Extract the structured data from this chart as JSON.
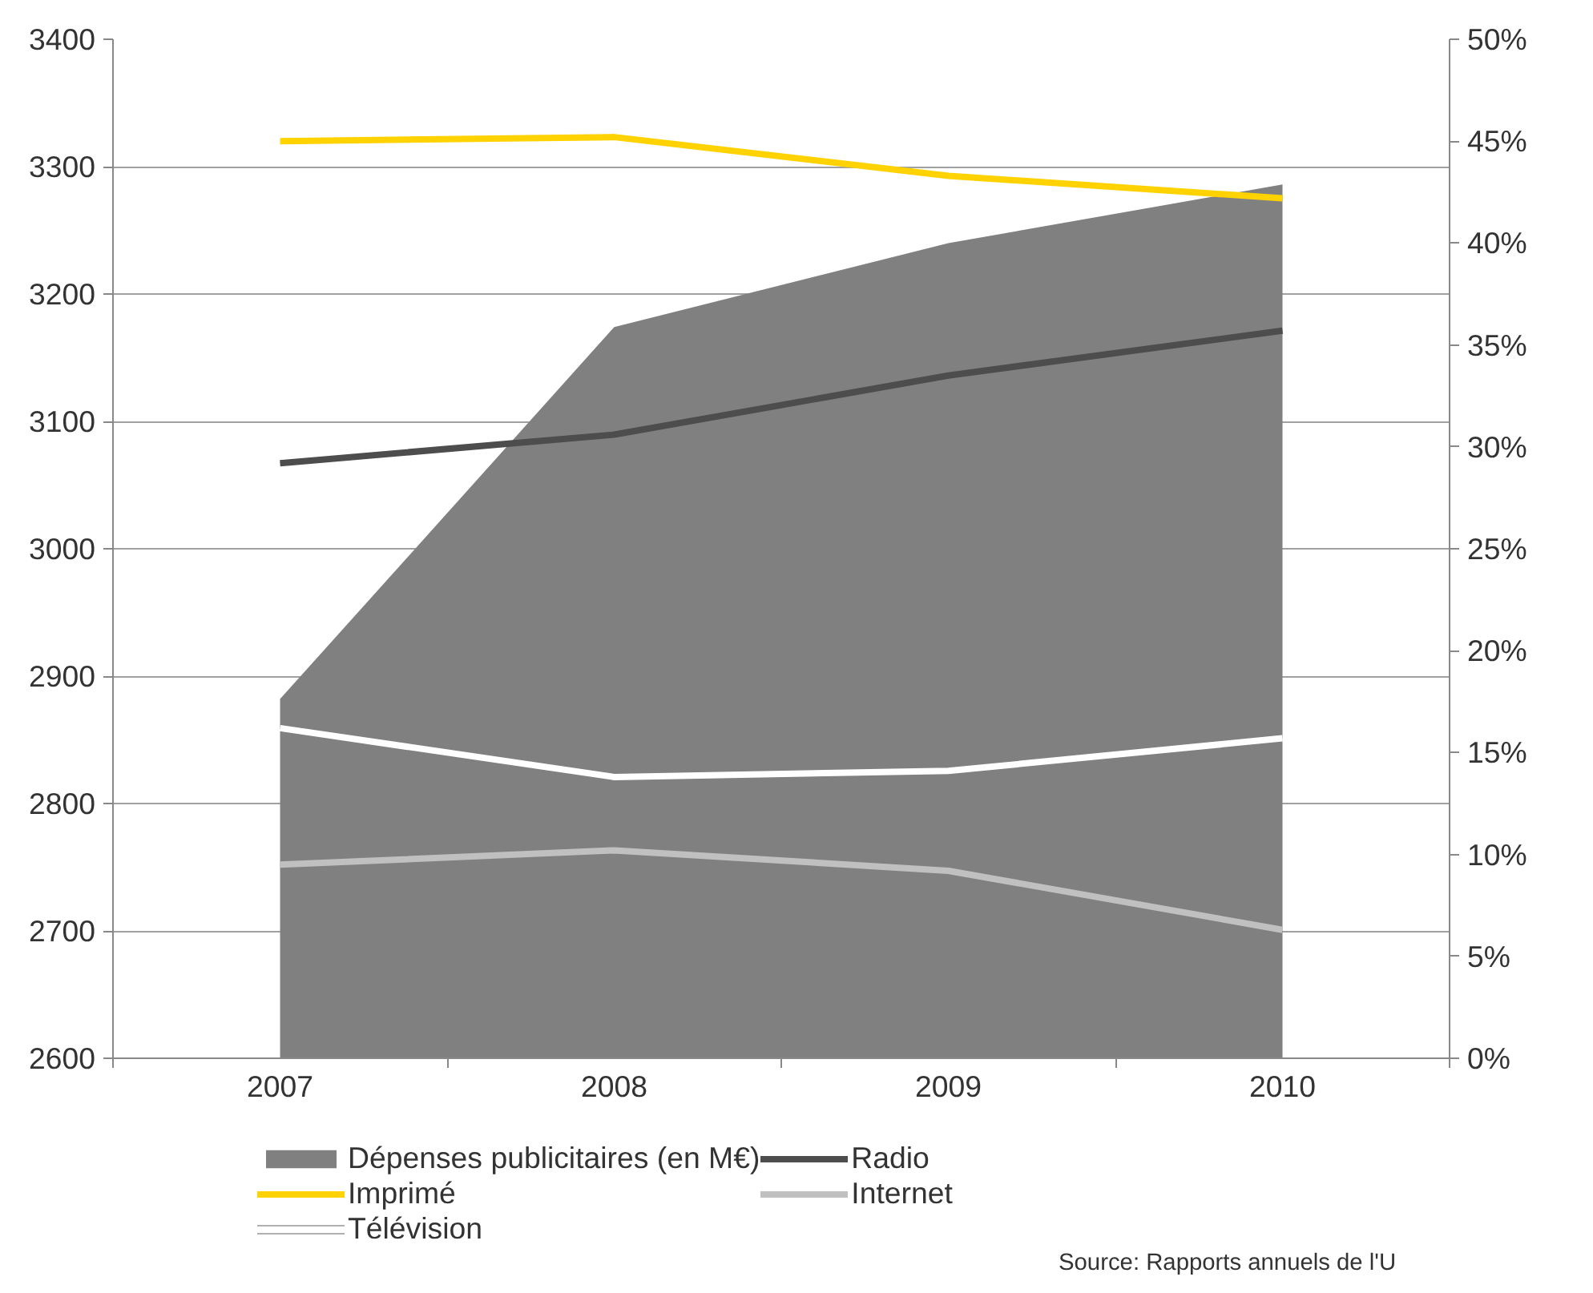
{
  "chart_data": {
    "type": "line",
    "categories": [
      "2007",
      "2008",
      "2009",
      "2010"
    ],
    "series": [
      {
        "name": "Dépenses publicitaires (en M€)",
        "type": "area",
        "color": "#808080",
        "values": [
          2882,
          3174,
          3240,
          3286
        ]
      },
      {
        "name": "Imprimé",
        "color": "#ffd200",
        "axis": "y2",
        "values": [
          45.0,
          45.2,
          43.3,
          42.2
        ]
      },
      {
        "name": "Télévision",
        "color": "#ffffff",
        "axis": "y2",
        "values": [
          16.2,
          13.8,
          14.1,
          15.7
        ]
      },
      {
        "name": "Radio",
        "color": "#4d4d4d",
        "axis": "y2",
        "values": [
          29.2,
          30.6,
          33.5,
          35.7
        ]
      },
      {
        "name": "Internet",
        "color": "#c0c0c0",
        "axis": "y2",
        "values": [
          9.5,
          10.2,
          9.2,
          6.3
        ]
      }
    ],
    "ylim": [
      2600,
      3400
    ],
    "yticks": [
      2600,
      2700,
      2800,
      2900,
      3000,
      3100,
      3200,
      3300,
      3400
    ],
    "y2lim": [
      0,
      50
    ],
    "y2ticks": [
      {
        "value": 0,
        "label": "0%"
      },
      {
        "value": 5,
        "label": "5%"
      },
      {
        "value": 10,
        "label": "10%"
      },
      {
        "value": 15,
        "label": "15%"
      },
      {
        "value": 20,
        "label": "20%"
      },
      {
        "value": 25,
        "label": "25%"
      },
      {
        "value": 30,
        "label": "30%"
      },
      {
        "value": 35,
        "label": "35%"
      },
      {
        "value": 40,
        "label": "40%"
      },
      {
        "value": 45,
        "label": "45%"
      },
      {
        "value": 50,
        "label": "50%"
      }
    ],
    "grid": "y",
    "legend": "bottom",
    "line_style": "solid",
    "marker": "none",
    "annotations": [
      "Source: Rapports annuels de l'U"
    ]
  }
}
